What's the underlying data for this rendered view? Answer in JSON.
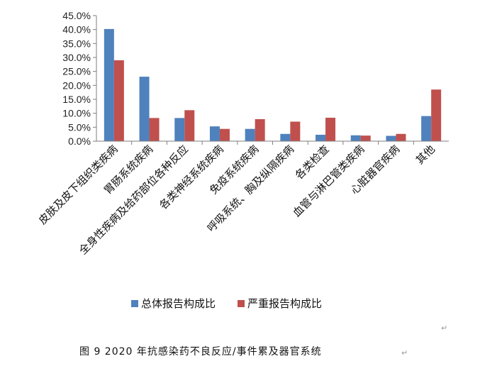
{
  "chart_data": {
    "type": "bar",
    "categories": [
      "皮肤及皮下组织类疾病",
      "胃肠系统疾病",
      "全身性疾病及给药部位各种反应",
      "各类神经系统疾病",
      "免疫系统疾病",
      "呼吸系统、胸及纵隔疾病",
      "各类检查",
      "血管与淋巴管类疾病",
      "心脏器官疾病",
      "其他"
    ],
    "series": [
      {
        "name": "总体报告构成比",
        "color": "#4f81bd",
        "values": [
          40.2,
          23.1,
          8.3,
          5.3,
          4.4,
          2.6,
          2.3,
          2.1,
          1.9,
          9.0
        ]
      },
      {
        "name": "严重报告构成比",
        "color": "#c0504d",
        "values": [
          29.0,
          8.3,
          11.1,
          4.4,
          7.9,
          7.0,
          8.4,
          2.0,
          2.6,
          18.5
        ]
      }
    ],
    "y_ticks": [
      "0.0%",
      "5.0%",
      "10.0%",
      "15.0%",
      "20.0%",
      "25.0%",
      "30.0%",
      "35.0%",
      "40.0%",
      "45.0%"
    ],
    "ylim": [
      0,
      45
    ],
    "grid": false,
    "legend_position": "bottom"
  },
  "caption": "图 9   2020 年抗感染药不良反应/事件累及器官系统",
  "paragraph_mark": "↵"
}
